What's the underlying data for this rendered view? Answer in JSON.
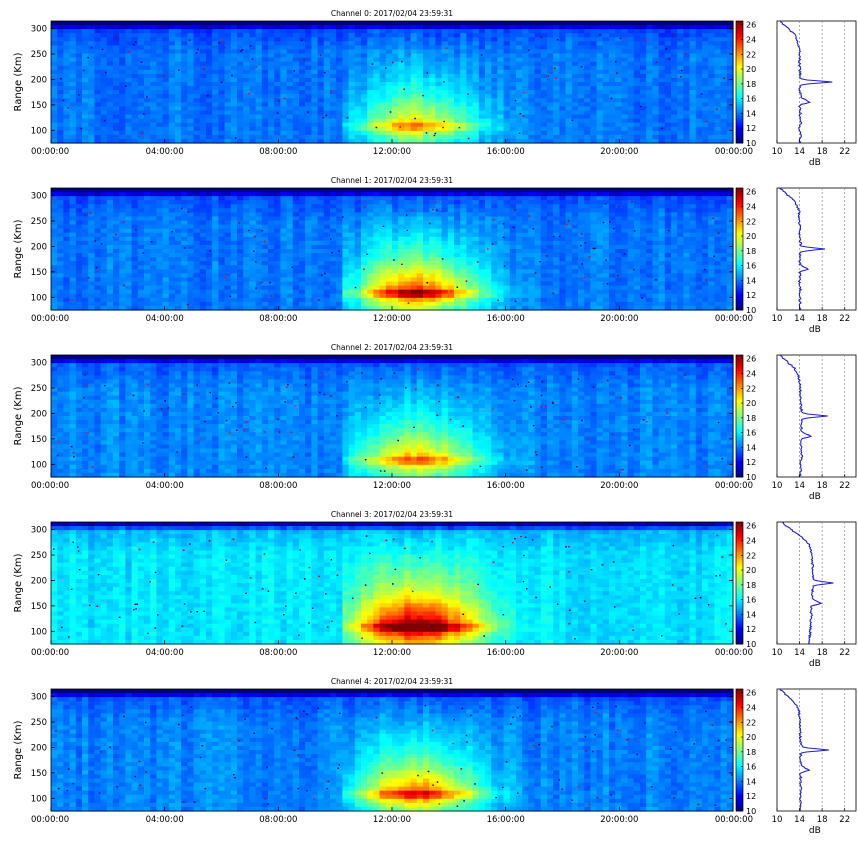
{
  "figure": {
    "colorbar": {
      "ticks": [
        10,
        12,
        14,
        16,
        18,
        20,
        22,
        24,
        26
      ],
      "range": [
        10,
        26.5
      ],
      "colormap": "jet"
    },
    "rti": {
      "ylabel": "Range (Km)",
      "y_ticks": [
        100,
        150,
        200,
        250,
        300
      ],
      "y_range": [
        75,
        315
      ],
      "x_ticks": [
        "00:00:00",
        "04:00:00",
        "08:00:00",
        "12:00:00",
        "16:00:00",
        "20:00:00",
        "00:00:00"
      ],
      "x_range_hours": [
        0,
        24
      ]
    },
    "profile": {
      "xlabel": "dB",
      "x_ticks": [
        10,
        14,
        18,
        22
      ],
      "x_range": [
        10,
        24
      ],
      "dashed_gridlines": [
        14,
        18,
        22
      ]
    }
  },
  "chart_data": [
    {
      "type": "heatmap",
      "title": "Channel 0: 2017/02/04 23:59:31",
      "x_unit": "hours",
      "x_range": [
        0,
        24
      ],
      "y_range": [
        75,
        315
      ],
      "baseline_db": 14.0,
      "day_enhancement_db": 6.5,
      "day_window_hours": [
        10.2,
        17.2
      ],
      "peak_hour": 12.8,
      "peak_range_km": 108,
      "profile": {
        "range_km": [
          75,
          90,
          105,
          115,
          130,
          140,
          150,
          155,
          165,
          180,
          190,
          195,
          200,
          210,
          230,
          250,
          270,
          280,
          290,
          300,
          315
        ],
        "db": [
          14.0,
          14.2,
          14.0,
          14.3,
          14.1,
          14.2,
          14.0,
          15.8,
          14.2,
          14.0,
          14.2,
          19.8,
          14.3,
          14.1,
          14.0,
          14.0,
          13.8,
          13.5,
          13.0,
          12.0,
          10.5
        ]
      }
    },
    {
      "type": "heatmap",
      "title": "Channel 1: 2017/02/04 23:59:31",
      "x_unit": "hours",
      "x_range": [
        0,
        24
      ],
      "y_range": [
        75,
        315
      ],
      "baseline_db": 14.0,
      "day_enhancement_db": 9.5,
      "day_window_hours": [
        10.2,
        17.4
      ],
      "peak_hour": 12.8,
      "peak_range_km": 108,
      "profile": {
        "range_km": [
          75,
          90,
          105,
          115,
          130,
          140,
          150,
          155,
          165,
          180,
          190,
          195,
          200,
          210,
          230,
          250,
          270,
          280,
          290,
          300,
          315
        ],
        "db": [
          14.0,
          14.1,
          14.0,
          14.2,
          14.0,
          14.1,
          14.0,
          15.5,
          14.1,
          14.0,
          14.2,
          18.5,
          14.3,
          14.1,
          14.0,
          14.0,
          13.9,
          13.6,
          13.0,
          12.0,
          10.5
        ]
      }
    },
    {
      "type": "heatmap",
      "title": "Channel 2: 2017/02/04 23:59:31",
      "x_unit": "hours",
      "x_range": [
        0,
        24
      ],
      "y_range": [
        75,
        315
      ],
      "baseline_db": 14.2,
      "day_enhancement_db": 7.0,
      "day_window_hours": [
        10.2,
        17.2
      ],
      "peak_hour": 12.8,
      "peak_range_km": 108,
      "profile": {
        "range_km": [
          75,
          90,
          105,
          115,
          130,
          140,
          150,
          155,
          165,
          180,
          190,
          195,
          200,
          210,
          230,
          250,
          270,
          280,
          290,
          300,
          315
        ],
        "db": [
          14.0,
          14.3,
          14.1,
          14.4,
          14.2,
          14.3,
          14.2,
          16.0,
          14.4,
          14.2,
          14.5,
          19.0,
          14.5,
          14.3,
          14.2,
          14.1,
          13.9,
          13.6,
          13.0,
          12.0,
          10.5
        ]
      }
    },
    {
      "type": "heatmap",
      "title": "Channel 3: 2017/02/04 23:59:31",
      "x_unit": "hours",
      "x_range": [
        0,
        24
      ],
      "y_range": [
        75,
        315
      ],
      "baseline_db": 15.8,
      "day_enhancement_db": 10.5,
      "day_window_hours": [
        10.2,
        17.8
      ],
      "peak_hour": 12.8,
      "peak_range_km": 108,
      "profile": {
        "range_km": [
          75,
          90,
          105,
          115,
          130,
          140,
          150,
          155,
          165,
          180,
          190,
          195,
          200,
          210,
          230,
          250,
          270,
          280,
          290,
          300,
          315
        ],
        "db": [
          15.7,
          15.8,
          15.9,
          16.0,
          16.1,
          16.0,
          16.1,
          17.8,
          16.2,
          16.3,
          16.4,
          20.0,
          16.5,
          16.4,
          16.3,
          16.2,
          15.8,
          15.0,
          13.8,
          12.5,
          10.8
        ]
      }
    },
    {
      "type": "heatmap",
      "title": "Channel 4: 2017/02/04 23:59:31",
      "x_unit": "hours",
      "x_range": [
        0,
        24
      ],
      "y_range": [
        75,
        315
      ],
      "baseline_db": 14.2,
      "day_enhancement_db": 8.5,
      "day_window_hours": [
        10.2,
        17.5
      ],
      "peak_hour": 12.8,
      "peak_range_km": 108,
      "profile": {
        "range_km": [
          75,
          90,
          105,
          115,
          130,
          140,
          150,
          155,
          165,
          180,
          190,
          195,
          200,
          210,
          230,
          250,
          270,
          280,
          290,
          300,
          315
        ],
        "db": [
          14.0,
          14.2,
          14.1,
          14.3,
          14.1,
          14.2,
          14.1,
          15.7,
          14.3,
          14.1,
          14.3,
          19.2,
          14.5,
          14.2,
          14.1,
          14.0,
          13.9,
          13.6,
          13.0,
          12.0,
          10.5
        ]
      }
    }
  ]
}
